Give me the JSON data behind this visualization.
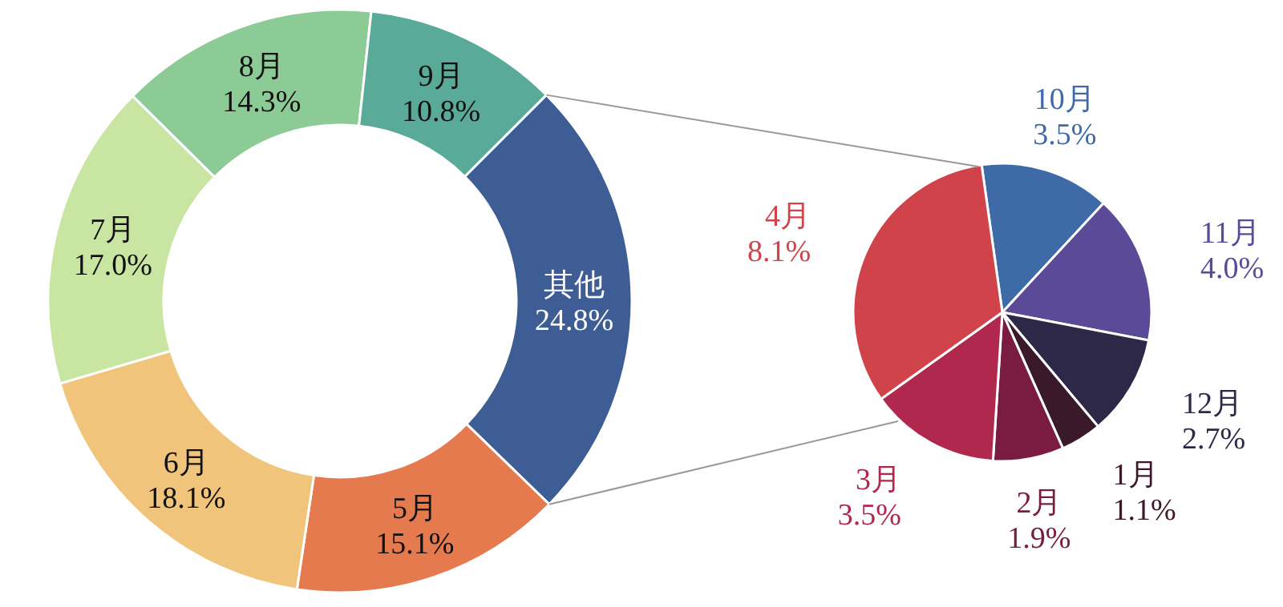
{
  "chart_data": [
    {
      "type": "donut",
      "categories": [
        "其他",
        "5月",
        "6月",
        "7月",
        "8月",
        "9月"
      ],
      "values": [
        24.8,
        15.1,
        18.1,
        17.0,
        14.3,
        10.8
      ],
      "value_labels": [
        "24.8%",
        "15.1%",
        "18.1%",
        "17.0%",
        "14.3%",
        "10.8%"
      ],
      "colors": [
        "#3d5d94",
        "#e57a4e",
        "#f0c47a",
        "#c8e5a2",
        "#8ccb96",
        "#5aaa99"
      ]
    },
    {
      "type": "pie",
      "categories": [
        "10月",
        "11月",
        "12月",
        "1月",
        "2月",
        "3月",
        "4月"
      ],
      "values": [
        3.5,
        4.0,
        2.7,
        1.1,
        1.9,
        3.5,
        8.1
      ],
      "value_labels": [
        "3.5%",
        "4.0%",
        "2.7%",
        "1.1%",
        "1.9%",
        "3.5%",
        "8.1%"
      ],
      "colors": [
        "#3e6aa8",
        "#5a4a98",
        "#2d2848",
        "#3a1a2a",
        "#7a1c42",
        "#b0284e",
        "#d0434a"
      ]
    }
  ]
}
